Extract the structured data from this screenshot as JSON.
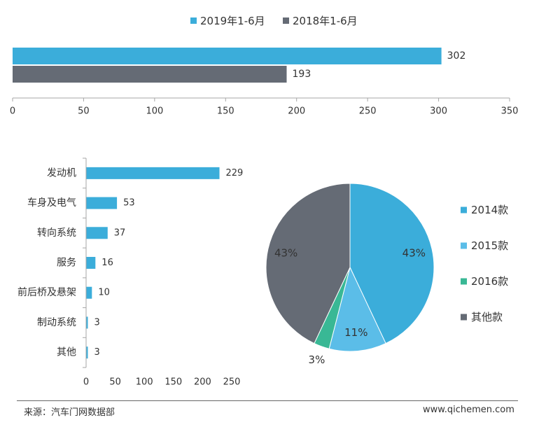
{
  "colors": {
    "blue": "#3badda",
    "light_blue": "#5bbde8",
    "teal": "#39b895",
    "slate": "#656b75"
  },
  "chart_data": [
    {
      "type": "bar",
      "orientation": "horizontal",
      "series": [
        {
          "name": "2019年1-6月",
          "values": [
            302
          ],
          "color": "#3badda"
        },
        {
          "name": "2018年1-6月",
          "values": [
            193
          ],
          "color": "#656b75"
        }
      ],
      "xlim": [
        0,
        350
      ],
      "xticks": [
        "0",
        "50",
        "100",
        "150",
        "200",
        "250",
        "300",
        "350"
      ],
      "legend_position": "top"
    },
    {
      "type": "bar",
      "orientation": "horizontal",
      "categories": [
        "发动机",
        "车身及电气",
        "转向系统",
        "服务",
        "前后桥及悬架",
        "制动系统",
        "其他"
      ],
      "values": [
        229,
        53,
        37,
        16,
        10,
        3,
        3
      ],
      "xlim": [
        0,
        250
      ],
      "xticks": [
        "0",
        "50",
        "100",
        "150",
        "200",
        "250"
      ],
      "color": "#3badda"
    },
    {
      "type": "pie",
      "labels": [
        "2014款",
        "2015款",
        "2016款",
        "其他款"
      ],
      "values": [
        43,
        11,
        3,
        43
      ],
      "value_labels": [
        "43%",
        "11%",
        "3%",
        "43%"
      ],
      "colors": [
        "#3badda",
        "#5bbde8",
        "#39b895",
        "#656b75"
      ],
      "legend_position": "right"
    }
  ],
  "footer": {
    "source": "来源：汽车门网数据部",
    "site": "www.qichemen.com"
  }
}
